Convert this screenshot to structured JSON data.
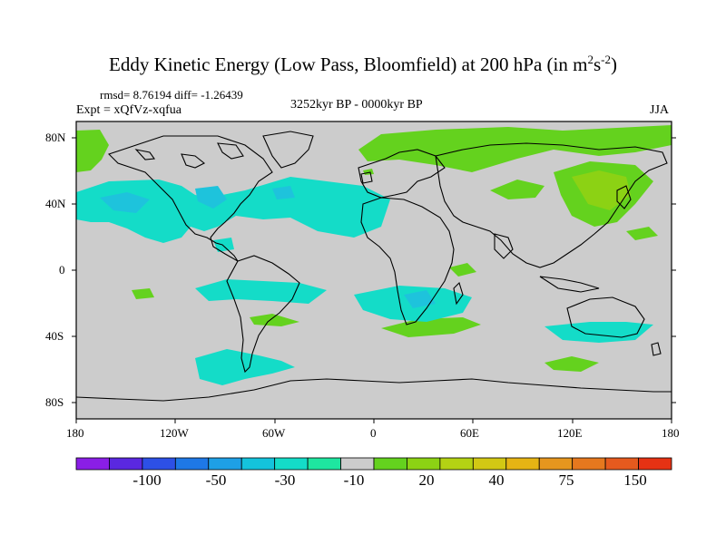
{
  "title": {
    "main": "Eddy Kinetic Energy (Low Pass, Bloomfield) at 200 hPa (in m",
    "sup1": "2",
    "mid": "s",
    "sup2": "-2",
    "end": ")"
  },
  "stats": "rmsd= 8.76194 diff= -1.26439",
  "experiment": "Expt = xQfVz-xqfua",
  "period": "3252kyr BP - 0000kyr BP",
  "season": "JJA",
  "y_ticks": [
    "80N",
    "40N",
    "0",
    "40S",
    "80S"
  ],
  "x_ticks": [
    "180",
    "120W",
    "60W",
    "0",
    "60E",
    "120E",
    "180"
  ],
  "colorbar": {
    "colors": [
      "#8a1ee6",
      "#5a28e0",
      "#2d50e6",
      "#1e78e6",
      "#1ea0e6",
      "#14c3dc",
      "#14dcc8",
      "#1ee6a0",
      "#cccccc",
      "#64d21e",
      "#8cd214",
      "#b4d214",
      "#d2c814",
      "#e6b414",
      "#e6961e",
      "#e6781e",
      "#e65a1e",
      "#e63214"
    ],
    "labels": [
      "-100",
      "-50",
      "-30",
      "-10",
      "20",
      "40",
      "75",
      "150"
    ]
  },
  "colors": {
    "background_field": "#cccccc",
    "positive": "#64d21e",
    "positive_strong": "#8cd214",
    "negative": "#14dcc8",
    "negative_strong": "#1ec3dc"
  }
}
